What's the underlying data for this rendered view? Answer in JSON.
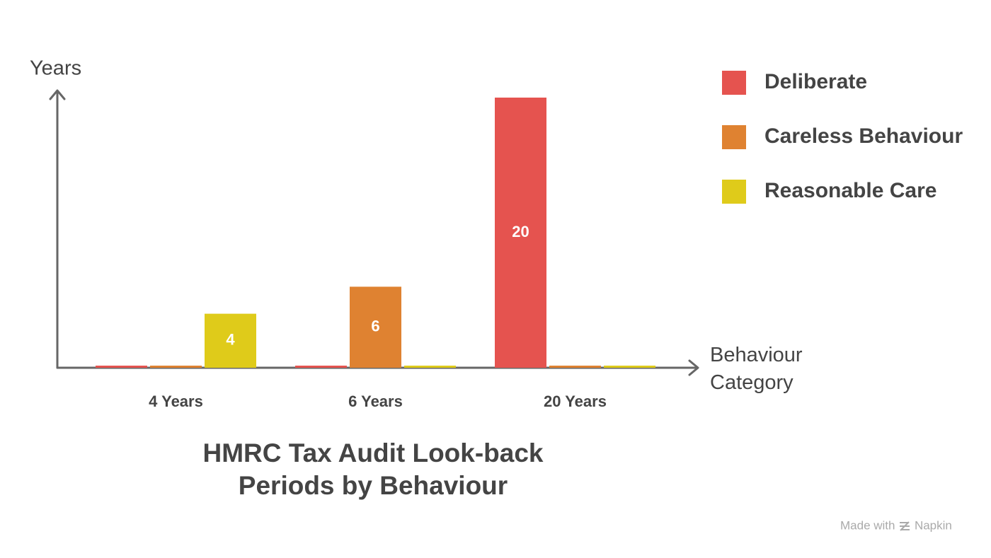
{
  "chart_data": {
    "type": "bar",
    "title": "HMRC Tax Audit Look-back Periods by Behaviour",
    "y_label": "Years",
    "x_label": "Behaviour Category",
    "categories": [
      "4 Years",
      "6 Years",
      "20 Years"
    ],
    "series": [
      {
        "name": "Deliberate",
        "color": "#e5534f",
        "values": [
          0,
          0,
          20
        ]
      },
      {
        "name": "Careless Behaviour",
        "color": "#df8231",
        "values": [
          0,
          6,
          0
        ]
      },
      {
        "name": "Reasonable Care",
        "color": "#dfcb1a",
        "values": [
          4,
          0,
          0
        ]
      }
    ],
    "ylim": [
      0,
      20
    ],
    "grid": false,
    "legend": "right"
  },
  "footer": {
    "prefix": "Made with",
    "brand": "Napkin"
  }
}
